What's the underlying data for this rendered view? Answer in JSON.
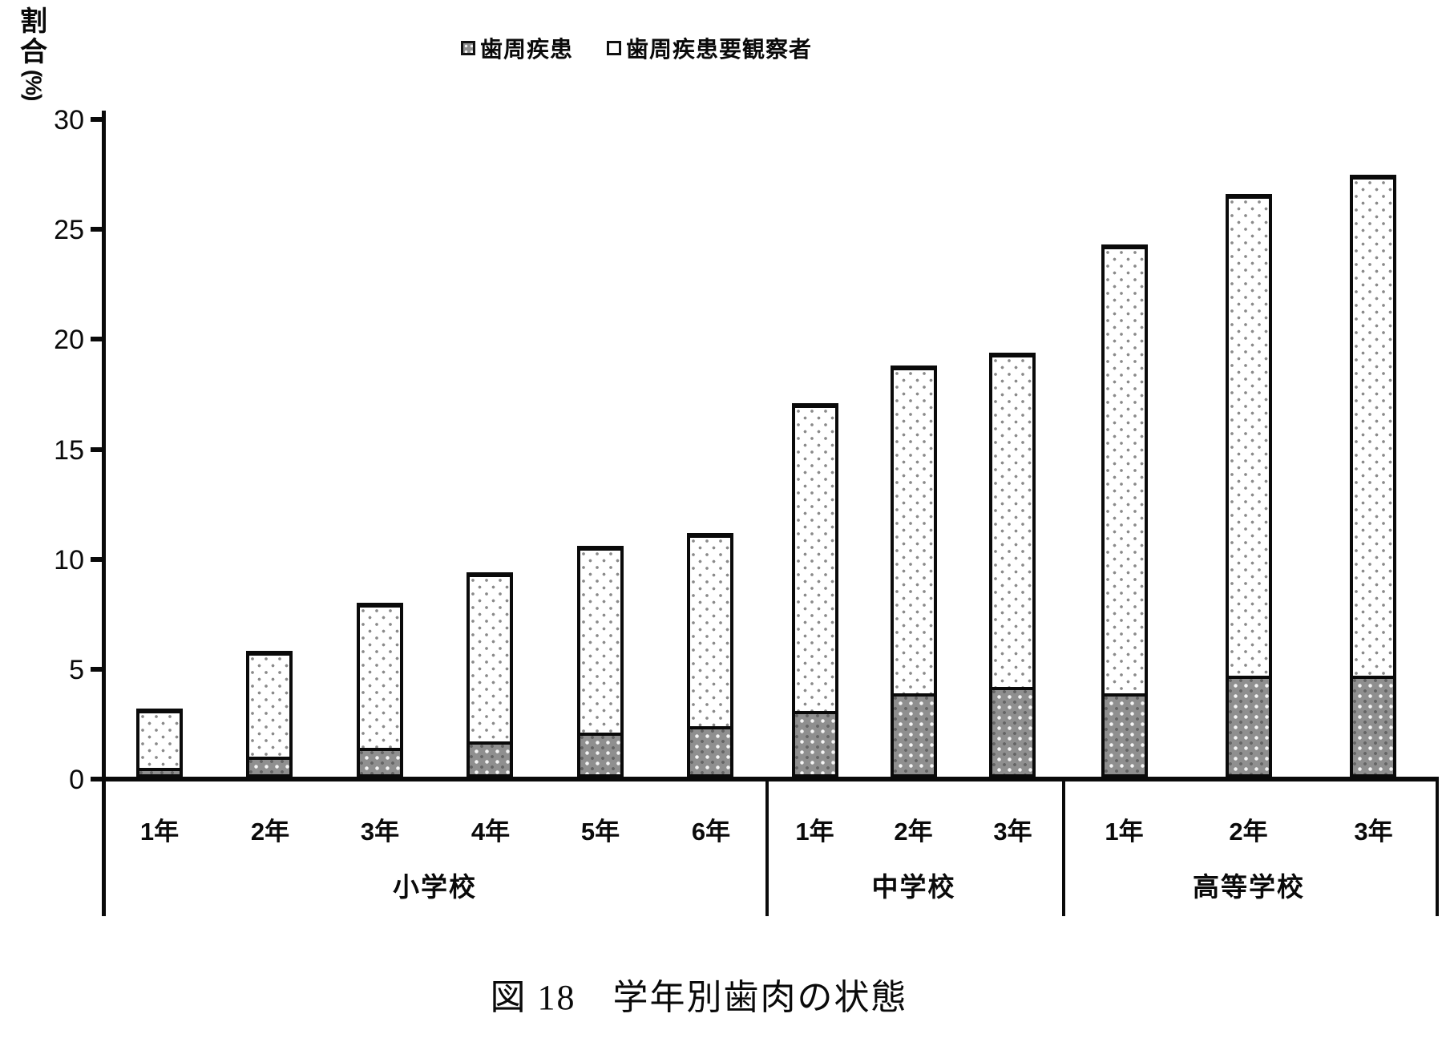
{
  "legend": {
    "items": [
      {
        "label": "歯周疾患",
        "swatch": "dark",
        "swatch_icon": "filled-square-icon"
      },
      {
        "label": "歯周疾患要観察者",
        "swatch": "light",
        "swatch_icon": "open-square-icon"
      }
    ]
  },
  "y_axis": {
    "label": "割合(%)",
    "tick_labels": [
      "0",
      "5",
      "10",
      "15",
      "20",
      "25",
      "30"
    ]
  },
  "x_axis": {
    "groups": [
      {
        "label": "小学校",
        "years": [
          "1年",
          "2年",
          "3年",
          "4年",
          "5年",
          "6年"
        ]
      },
      {
        "label": "中学校",
        "years": [
          "1年",
          "2年",
          "3年"
        ]
      },
      {
        "label": "高等学校",
        "years": [
          "1年",
          "2年",
          "3年"
        ]
      }
    ]
  },
  "caption": "図 18　学年別歯肉の状態",
  "colors": {
    "dark_segment": "#8f8f8f",
    "light_segment": "#ffffff",
    "line": "#0a0a0a"
  },
  "chart_data": {
    "type": "bar",
    "stacked": true,
    "title": "図 18　学年別歯肉の状態",
    "ylabel": "割合(%)",
    "ylim": [
      0,
      30
    ],
    "yticks": [
      0,
      5,
      10,
      15,
      20,
      25,
      30
    ],
    "grid": false,
    "legend_position": "top-center",
    "categories": [
      "小学校 1年",
      "小学校 2年",
      "小学校 3年",
      "小学校 4年",
      "小学校 5年",
      "小学校 6年",
      "中学校 1年",
      "中学校 2年",
      "中学校 3年",
      "高等学校 1年",
      "高等学校 2年",
      "高等学校 3年"
    ],
    "group_sizes": [
      6,
      3,
      3
    ],
    "series": [
      {
        "name": "歯周疾患",
        "values": [
          0.4,
          0.9,
          1.3,
          1.6,
          2.0,
          2.3,
          3.0,
          3.8,
          4.1,
          3.8,
          4.6,
          4.6
        ]
      },
      {
        "name": "歯周疾患要観察者",
        "values": [
          2.7,
          4.8,
          6.6,
          7.7,
          8.5,
          8.8,
          14.0,
          14.9,
          15.2,
          20.4,
          21.9,
          22.8
        ]
      }
    ],
    "stack_totals": [
      3.1,
      5.7,
      7.9,
      9.3,
      10.5,
      11.1,
      17.0,
      18.7,
      19.3,
      24.2,
      26.5,
      27.4
    ]
  }
}
